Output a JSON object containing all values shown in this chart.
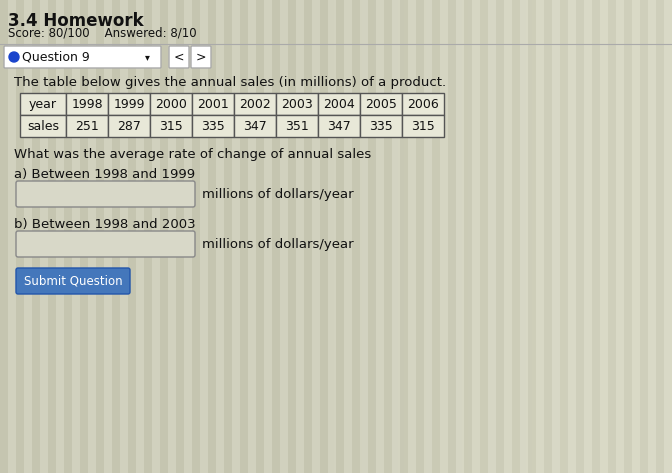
{
  "title": "3.4 Homework",
  "score_text": "Score: 80/100    Answered: 8/10",
  "question_label": "Question 9",
  "description": "The table below gives the annual sales (in millions) of a product.",
  "table_headers": [
    "year",
    "1998",
    "1999",
    "2000",
    "2001",
    "2002",
    "2003",
    "2004",
    "2005",
    "2006"
  ],
  "table_row_label": "sales",
  "table_values": [
    251,
    287,
    315,
    335,
    347,
    351,
    347,
    335,
    315
  ],
  "question_text": "What was the average rate of change of annual sales",
  "part_a_label": "a) Between 1998 and 1999",
  "part_b_label": "b) Between 1998 and 2003",
  "unit_label": "millions of dollars/year",
  "bg_color": "#cecebb",
  "white_color": "#ffffff",
  "text_color": "#111111",
  "input_box_color": "#d8d8c8",
  "bullet_color": "#1a44cc",
  "submit_button_color": "#4477bb",
  "stripe_color_dark": "#b8b8a0",
  "stripe_color_light": "#d8d8c4",
  "table_bg": "#e8e8d8",
  "separator_color": "#aaaaaa"
}
